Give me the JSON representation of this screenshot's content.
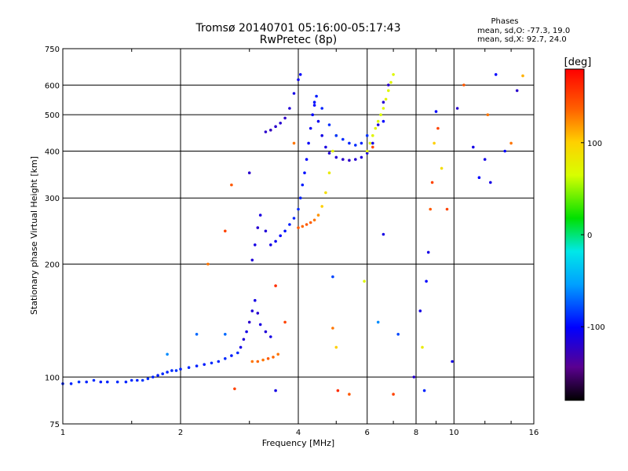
{
  "header": {
    "title": "Tromsø 20140701 05:16:00-05:17:43",
    "subtitle": "RwPretec (8p)",
    "phase_heading": "Phases",
    "phase_line_o": "mean, sd,O: -77.3, 19.0",
    "phase_line_x": "mean, sd,X:  92.7, 24.0"
  },
  "chart_data": {
    "type": "scatter",
    "xlabel": "Frequency [MHz]",
    "ylabel": "Stationary phase Virtual Height [km]",
    "xscale": "log",
    "yscale": "log",
    "xlim": [
      1,
      16
    ],
    "ylim": [
      75,
      750
    ],
    "x_ticks": [
      1,
      2,
      4,
      6,
      8,
      10,
      16
    ],
    "x_tick_labels": [
      "1",
      "2",
      "4",
      "6",
      "8",
      "10",
      "16"
    ],
    "y_ticks": [
      75,
      100,
      200,
      300,
      400,
      500,
      600,
      750
    ],
    "y_tick_labels": [
      "75",
      "100",
      "200",
      "300",
      "400",
      "500",
      "600",
      "750"
    ],
    "grid": true,
    "colorbar": {
      "label": "[deg]",
      "range": [
        -180,
        180
      ],
      "ticks": [
        100,
        0,
        -100
      ],
      "tick_labels": [
        "100",
        "0",
        "-100"
      ]
    },
    "series": [
      {
        "points": [
          [
            1.0,
            96,
            -90
          ],
          [
            1.05,
            96,
            -90
          ],
          [
            1.1,
            97,
            -85
          ],
          [
            1.15,
            97,
            -90
          ],
          [
            1.2,
            98,
            -88
          ],
          [
            1.25,
            97,
            -92
          ],
          [
            1.3,
            97,
            -90
          ],
          [
            1.38,
            97,
            -88
          ],
          [
            1.45,
            97,
            -90
          ],
          [
            1.5,
            98,
            -88
          ],
          [
            1.55,
            98,
            -90
          ],
          [
            1.6,
            98,
            -85
          ],
          [
            1.65,
            99,
            -88
          ],
          [
            1.7,
            100,
            -90
          ],
          [
            1.75,
            101,
            -92
          ],
          [
            1.8,
            102,
            -88
          ],
          [
            1.85,
            103,
            -90
          ],
          [
            1.9,
            104,
            -88
          ],
          [
            1.95,
            104,
            -85
          ],
          [
            2.0,
            105,
            -90
          ],
          [
            2.1,
            106,
            -88
          ],
          [
            2.2,
            107,
            -90
          ],
          [
            2.3,
            108,
            -92
          ],
          [
            2.4,
            109,
            -88
          ],
          [
            2.5,
            110,
            -90
          ],
          [
            2.6,
            112,
            -88
          ],
          [
            2.7,
            114,
            -92
          ],
          [
            2.8,
            116,
            -88
          ]
        ]
      },
      {
        "points": [
          [
            2.85,
            120,
            -110
          ],
          [
            2.9,
            126,
            -115
          ],
          [
            2.95,
            132,
            -110
          ],
          [
            3.0,
            140,
            -120
          ],
          [
            3.05,
            150,
            -115
          ],
          [
            3.1,
            160,
            -110
          ],
          [
            3.15,
            148,
            -118
          ],
          [
            3.2,
            138,
            -112
          ],
          [
            3.3,
            132,
            -115
          ],
          [
            3.4,
            128,
            -110
          ]
        ]
      },
      {
        "points": [
          [
            3.05,
            110,
            130
          ],
          [
            3.15,
            110,
            135
          ],
          [
            3.25,
            111,
            130
          ],
          [
            3.35,
            112,
            140
          ],
          [
            3.45,
            113,
            135
          ],
          [
            3.55,
            115,
            130
          ]
        ]
      },
      {
        "points": [
          [
            3.05,
            205,
            -115
          ],
          [
            3.1,
            225,
            -110
          ],
          [
            3.15,
            250,
            -118
          ],
          [
            3.2,
            270,
            -112
          ],
          [
            3.3,
            245,
            -115
          ],
          [
            3.4,
            225,
            -110
          ],
          [
            3.5,
            230,
            -105
          ],
          [
            3.6,
            238,
            -100
          ],
          [
            3.7,
            245,
            -95
          ],
          [
            3.8,
            255,
            -92
          ],
          [
            3.9,
            265,
            -90
          ],
          [
            4.0,
            280,
            -88
          ],
          [
            4.05,
            300,
            -90
          ],
          [
            4.1,
            325,
            -92
          ],
          [
            4.15,
            350,
            -95
          ],
          [
            4.2,
            380,
            -100
          ],
          [
            4.25,
            420,
            -102
          ],
          [
            4.3,
            460,
            -105
          ],
          [
            4.35,
            500,
            -100
          ],
          [
            4.4,
            540,
            -95
          ],
          [
            4.45,
            560,
            -92
          ]
        ]
      },
      {
        "points": [
          [
            3.3,
            450,
            -120
          ],
          [
            3.4,
            455,
            -125
          ],
          [
            3.5,
            465,
            -120
          ],
          [
            3.6,
            475,
            -118
          ],
          [
            3.7,
            490,
            -122
          ],
          [
            3.8,
            520,
            -115
          ],
          [
            3.9,
            570,
            -110
          ],
          [
            4.0,
            620,
            -105
          ],
          [
            4.05,
            640,
            -100
          ]
        ]
      },
      {
        "points": [
          [
            4.0,
            250,
            140
          ],
          [
            4.1,
            252,
            135
          ],
          [
            4.2,
            255,
            140
          ],
          [
            4.3,
            258,
            138
          ],
          [
            4.4,
            262,
            130
          ],
          [
            4.5,
            270,
            120
          ],
          [
            4.6,
            285,
            100
          ],
          [
            4.7,
            310,
            90
          ],
          [
            4.8,
            350,
            80
          ],
          [
            4.9,
            400,
            75
          ],
          [
            5.0,
            440,
            70
          ]
        ]
      },
      {
        "points": [
          [
            4.4,
            530,
            -100
          ],
          [
            4.5,
            480,
            -105
          ],
          [
            4.6,
            440,
            -110
          ],
          [
            4.7,
            410,
            -112
          ],
          [
            4.8,
            395,
            -115
          ],
          [
            5.0,
            385,
            -118
          ],
          [
            5.2,
            380,
            -120
          ],
          [
            5.4,
            378,
            -122
          ],
          [
            5.6,
            380,
            -118
          ],
          [
            5.8,
            385,
            -115
          ],
          [
            6.0,
            395,
            -112
          ],
          [
            6.2,
            420,
            -110
          ],
          [
            6.4,
            470,
            -115
          ],
          [
            6.6,
            540,
            -118
          ],
          [
            6.8,
            600,
            -120
          ]
        ]
      },
      {
        "points": [
          [
            4.6,
            520,
            -90
          ],
          [
            4.8,
            470,
            -88
          ],
          [
            5.0,
            440,
            -85
          ],
          [
            5.2,
            430,
            -88
          ],
          [
            5.4,
            420,
            -90
          ],
          [
            5.6,
            415,
            -88
          ],
          [
            5.8,
            420,
            -90
          ],
          [
            6.0,
            440,
            -85
          ]
        ]
      },
      {
        "points": [
          [
            6.0,
            400,
            75
          ],
          [
            6.1,
            420,
            70
          ],
          [
            6.2,
            440,
            72
          ],
          [
            6.3,
            460,
            75
          ],
          [
            6.4,
            480,
            70
          ],
          [
            6.5,
            500,
            68
          ],
          [
            6.6,
            520,
            72
          ],
          [
            6.7,
            550,
            75
          ],
          [
            6.8,
            580,
            70
          ],
          [
            6.9,
            610,
            72
          ],
          [
            7.0,
            640,
            70
          ]
        ]
      },
      {
        "points": [
          [
            1.85,
            115,
            -60
          ],
          [
            2.2,
            130,
            -70
          ],
          [
            2.35,
            200,
            130
          ],
          [
            2.6,
            130,
            -70
          ],
          [
            2.6,
            245,
            150
          ],
          [
            2.7,
            325,
            140
          ],
          [
            2.75,
            93,
            150
          ],
          [
            3.0,
            350,
            -120
          ],
          [
            3.5,
            175,
            160
          ],
          [
            3.5,
            92,
            -110
          ],
          [
            3.7,
            140,
            150
          ],
          [
            3.9,
            420,
            130
          ],
          [
            4.9,
            135,
            130
          ],
          [
            4.9,
            185,
            -80
          ],
          [
            5.0,
            120,
            100
          ],
          [
            5.05,
            92,
            160
          ],
          [
            5.4,
            90,
            140
          ],
          [
            5.9,
            180,
            70
          ],
          [
            6.2,
            410,
            150
          ],
          [
            6.4,
            140,
            -60
          ],
          [
            6.6,
            240,
            -110
          ],
          [
            6.6,
            480,
            -100
          ],
          [
            7.0,
            90,
            150
          ],
          [
            7.2,
            130,
            -80
          ],
          [
            7.9,
            100,
            -120
          ],
          [
            8.2,
            150,
            -110
          ],
          [
            8.3,
            120,
            80
          ],
          [
            8.4,
            92,
            -90
          ],
          [
            8.5,
            180,
            -100
          ],
          [
            8.6,
            215,
            -110
          ],
          [
            8.7,
            280,
            140
          ],
          [
            8.8,
            330,
            150
          ],
          [
            8.9,
            420,
            100
          ],
          [
            9.0,
            510,
            -100
          ],
          [
            9.1,
            460,
            150
          ],
          [
            9.3,
            360,
            90
          ],
          [
            9.6,
            280,
            150
          ],
          [
            9.9,
            110,
            -110
          ],
          [
            10.2,
            520,
            -120
          ],
          [
            10.6,
            600,
            140
          ],
          [
            11.2,
            410,
            -110
          ],
          [
            11.6,
            340,
            -100
          ],
          [
            12.0,
            380,
            -110
          ],
          [
            12.2,
            500,
            130
          ],
          [
            12.4,
            330,
            -110
          ],
          [
            12.8,
            640,
            -100
          ],
          [
            13.5,
            400,
            -100
          ],
          [
            14.0,
            420,
            130
          ],
          [
            14.5,
            580,
            -120
          ],
          [
            15.0,
            635,
            110
          ]
        ]
      }
    ]
  }
}
